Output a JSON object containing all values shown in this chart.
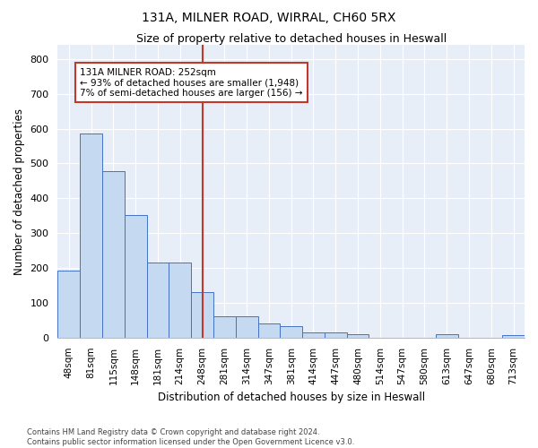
{
  "title_line1": "131A, MILNER ROAD, WIRRAL, CH60 5RX",
  "title_line2": "Size of property relative to detached houses in Heswall",
  "xlabel": "Distribution of detached houses by size in Heswall",
  "ylabel": "Number of detached properties",
  "categories": [
    "48sqm",
    "81sqm",
    "115sqm",
    "148sqm",
    "181sqm",
    "214sqm",
    "248sqm",
    "281sqm",
    "314sqm",
    "347sqm",
    "381sqm",
    "414sqm",
    "447sqm",
    "480sqm",
    "514sqm",
    "547sqm",
    "580sqm",
    "613sqm",
    "647sqm",
    "680sqm",
    "713sqm"
  ],
  "values": [
    192,
    585,
    478,
    353,
    215,
    215,
    130,
    62,
    62,
    40,
    33,
    16,
    16,
    10,
    0,
    0,
    0,
    10,
    0,
    0,
    8
  ],
  "bar_color": "#c5d9f1",
  "bar_edge_color": "#4472c4",
  "vline_index": 6,
  "vline_color": "#c0392b",
  "annotation_text": "131A MILNER ROAD: 252sqm\n← 93% of detached houses are smaller (1,948)\n7% of semi-detached houses are larger (156) →",
  "annotation_box_edge_color": "#c0392b",
  "annotation_box_face_color": "#ffffff",
  "ylim": [
    0,
    840
  ],
  "yticks": [
    0,
    100,
    200,
    300,
    400,
    500,
    600,
    700,
    800
  ],
  "background_color": "#e8eef8",
  "grid_color": "#ffffff",
  "footer_line1": "Contains HM Land Registry data © Crown copyright and database right 2024.",
  "footer_line2": "Contains public sector information licensed under the Open Government Licence v3.0."
}
